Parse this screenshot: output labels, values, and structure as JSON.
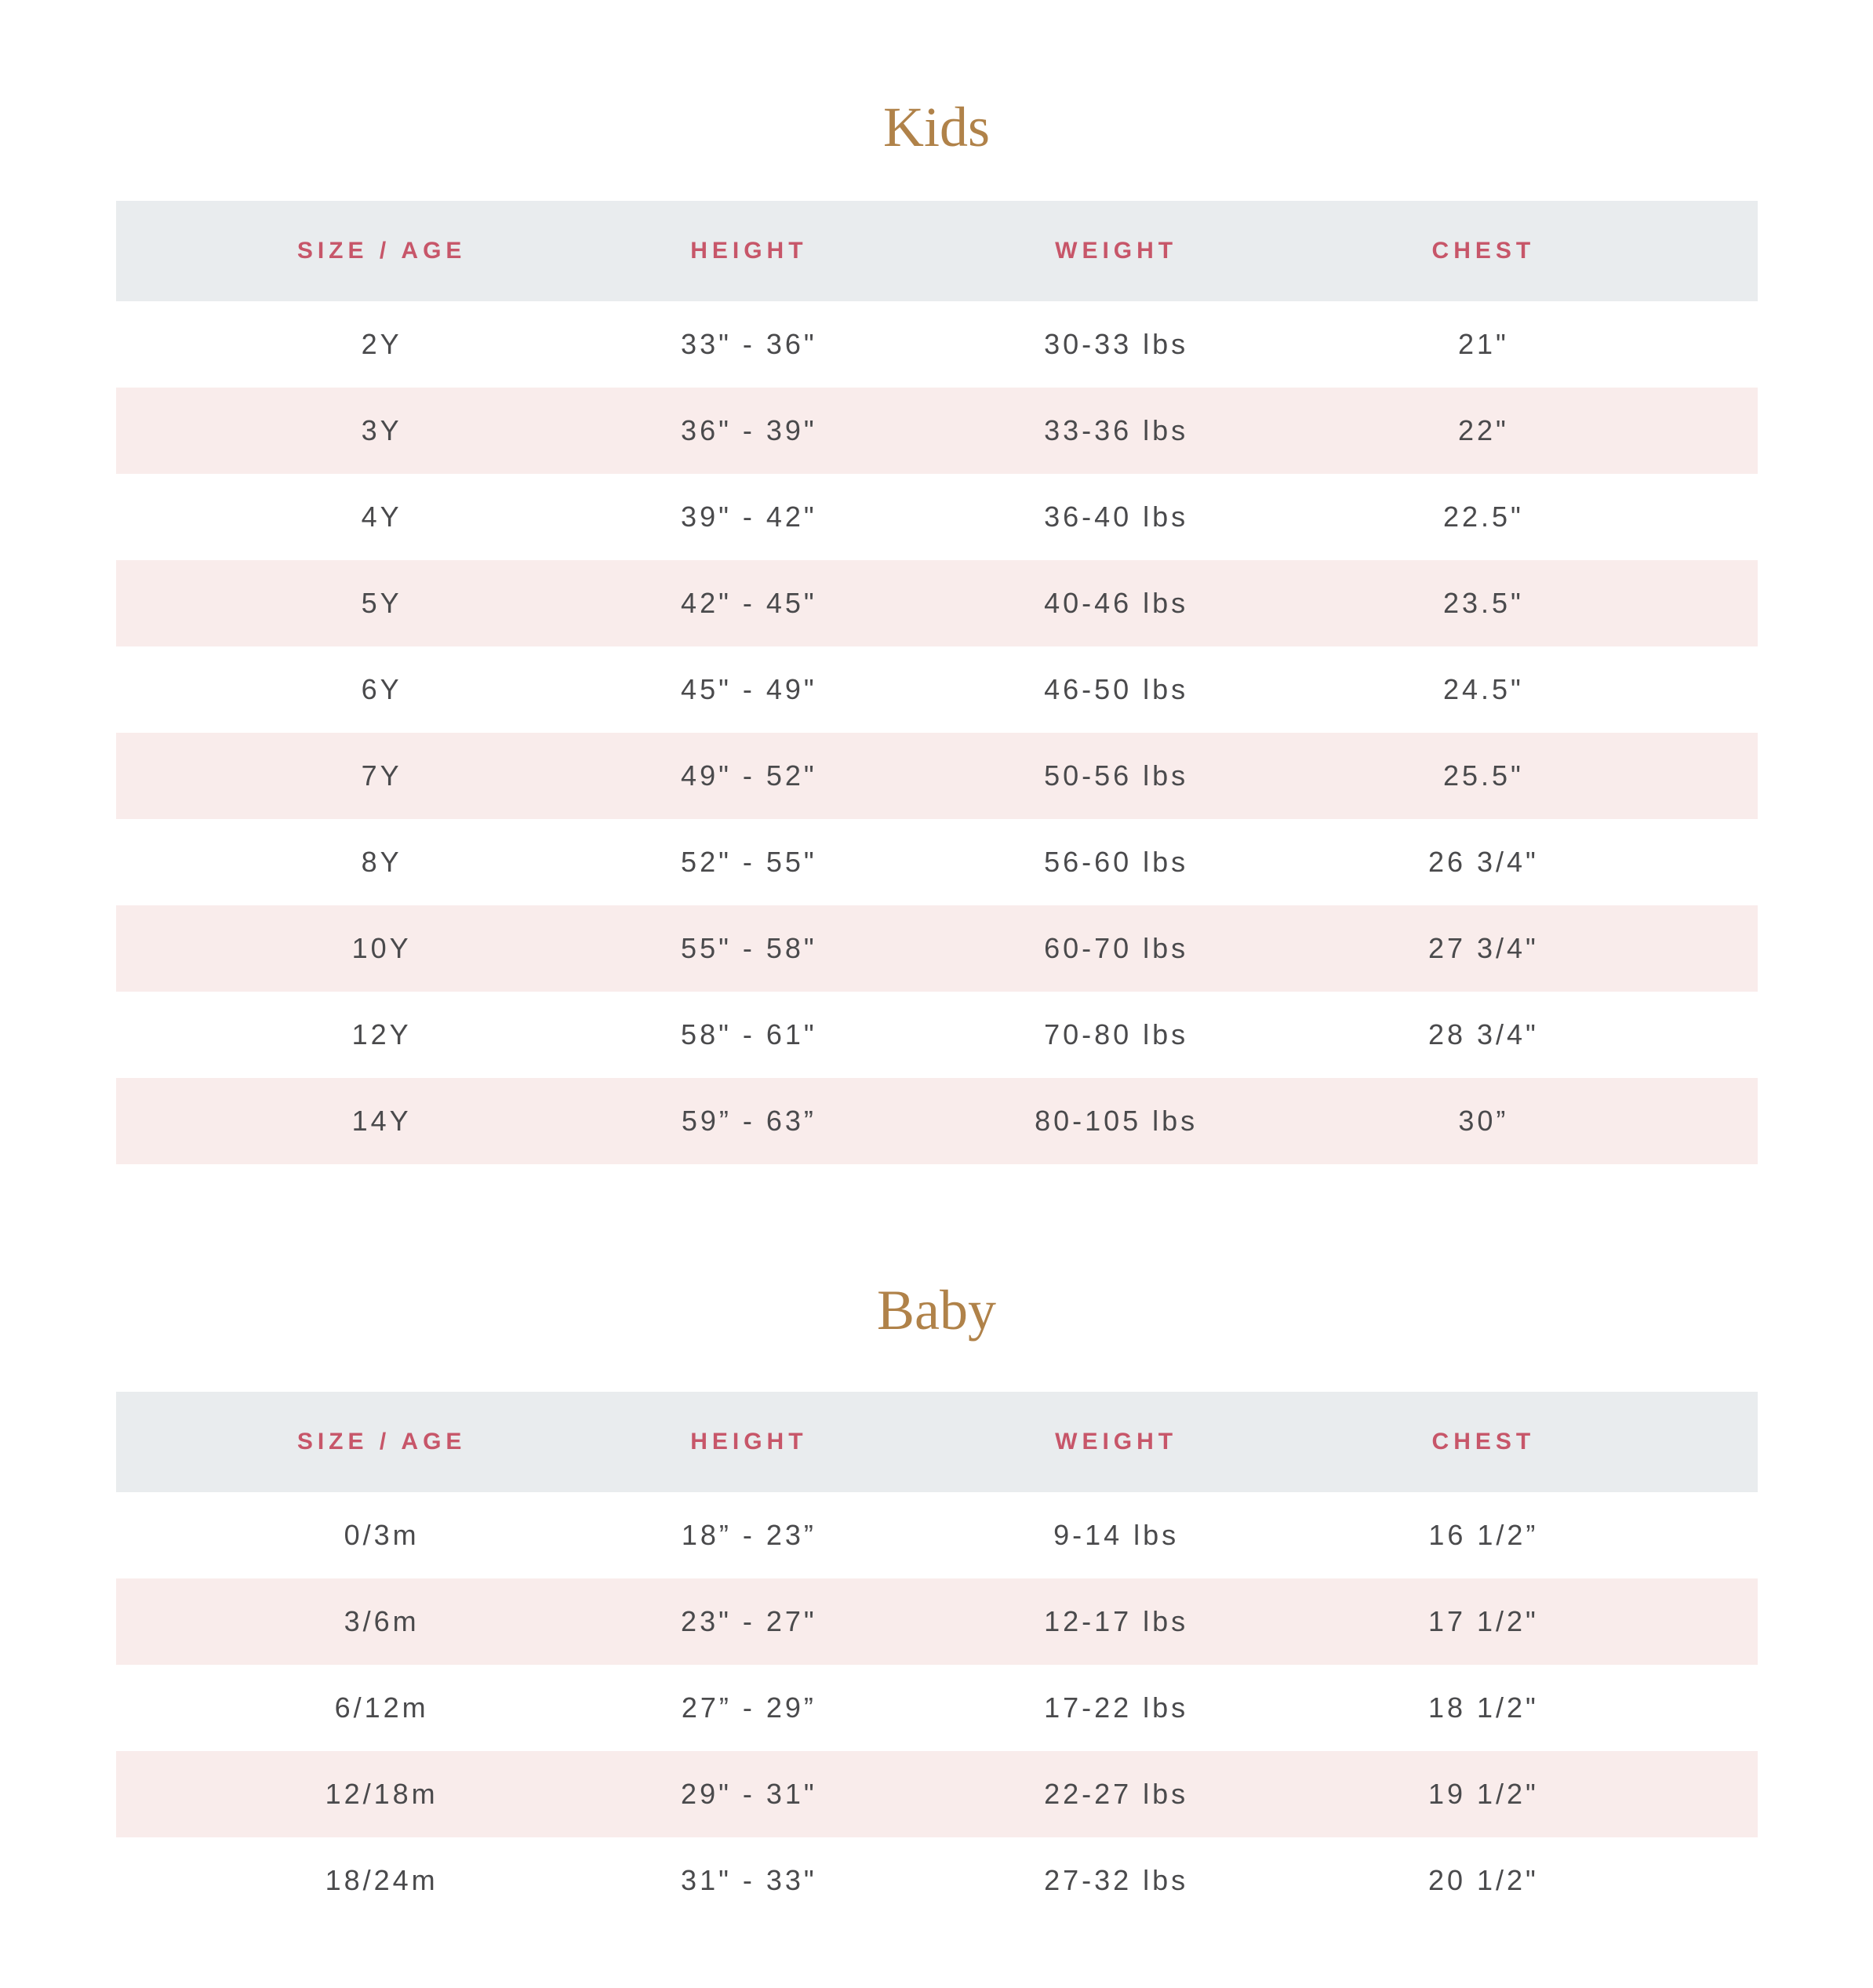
{
  "colors": {
    "title": "#b08249",
    "header_text": "#c75669",
    "header_bg": "#e9ecee",
    "row_alt_bg": "#f9eceb",
    "cell_text": "#4a4a4c",
    "page_bg": "#ffffff"
  },
  "sections": [
    {
      "title": "Kids",
      "columns": [
        "SIZE / AGE",
        "HEIGHT",
        "WEIGHT",
        "CHEST"
      ],
      "rows": [
        [
          "2Y",
          "33\" - 36\"",
          "30-33 lbs",
          "21\""
        ],
        [
          "3Y",
          "36\" - 39\"",
          "33-36 lbs",
          "22\""
        ],
        [
          "4Y",
          "39\" - 42\"",
          "36-40 lbs",
          "22.5\""
        ],
        [
          "5Y",
          "42\" - 45\"",
          "40-46 lbs",
          "23.5\""
        ],
        [
          "6Y",
          "45\" - 49\"",
          "46-50 lbs",
          "24.5\""
        ],
        [
          "7Y",
          "49\" - 52\"",
          "50-56 lbs",
          "25.5\""
        ],
        [
          "8Y",
          "52\" - 55\"",
          "56-60 lbs",
          "26 3/4\""
        ],
        [
          "10Y",
          "55\" - 58\"",
          "60-70 lbs",
          "27 3/4\""
        ],
        [
          "12Y",
          "58\" - 61\"",
          "70-80 lbs",
          "28 3/4\""
        ],
        [
          "14Y",
          "59” - 63”",
          "80-105 lbs",
          "30”"
        ]
      ]
    },
    {
      "title": "Baby",
      "columns": [
        "SIZE / AGE",
        "HEIGHT",
        "WEIGHT",
        "CHEST"
      ],
      "rows": [
        [
          "0/3m",
          "18” - 23”",
          "9-14 lbs",
          "16 1/2”"
        ],
        [
          "3/6m",
          "23\" - 27\"",
          "12-17 lbs",
          "17 1/2\""
        ],
        [
          "6/12m",
          "27” - 29”",
          "17-22 lbs",
          "18 1/2\""
        ],
        [
          "12/18m",
          "29\" - 31\"",
          "22-27 lbs",
          "19 1/2\""
        ],
        [
          "18/24m",
          "31\" - 33\"",
          "27-32 lbs",
          "20 1/2\""
        ]
      ]
    }
  ]
}
